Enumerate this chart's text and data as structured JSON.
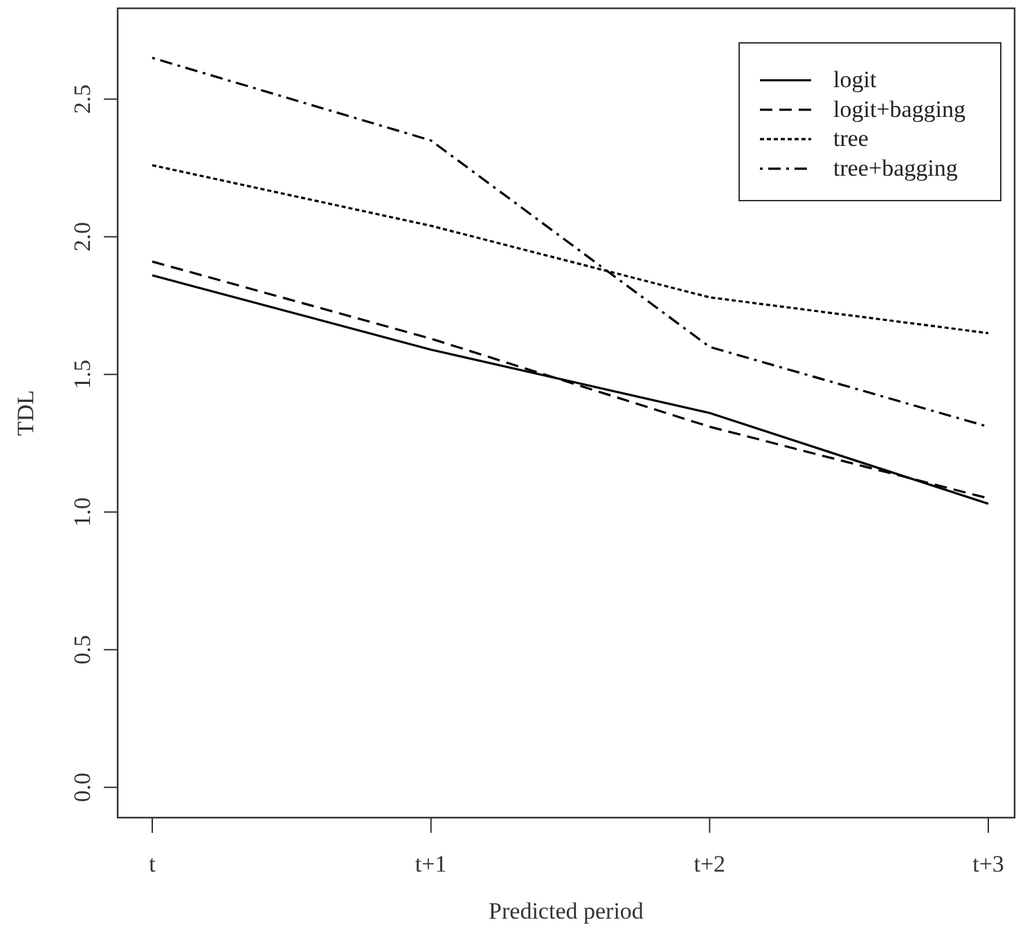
{
  "chart_data": {
    "type": "line",
    "xlabel": "Predicted period",
    "ylabel": "TDL",
    "categories": [
      "t",
      "t+1",
      "t+2",
      "t+3"
    ],
    "ylim": [
      -0.11,
      2.83
    ],
    "yticks": [
      {
        "value": 0,
        "label": "0.0"
      },
      {
        "value": 0.5,
        "label": "0.5"
      },
      {
        "value": 1,
        "label": "1.0"
      },
      {
        "value": 1.5,
        "label": "1.5"
      },
      {
        "value": 2,
        "label": "2.0"
      },
      {
        "value": 2.5,
        "label": "2.5"
      }
    ],
    "legend": "top right",
    "grid": false,
    "series": [
      {
        "name": "logit",
        "color": "#000000",
        "line_style": "solid",
        "values": [
          1.86,
          1.59,
          1.36,
          1.03
        ]
      },
      {
        "name": "logit+bagging",
        "color": "#000000",
        "line_style": "dashed",
        "values": [
          1.91,
          1.63,
          1.31,
          1.05
        ]
      },
      {
        "name": "tree",
        "color": "#000000",
        "line_style": "dotted",
        "values": [
          2.26,
          2.04,
          1.78,
          1.65
        ]
      },
      {
        "name": "tree+bagging",
        "color": "#000000",
        "line_style": "dashdot",
        "values": [
          2.65,
          2.35,
          1.6,
          1.31
        ]
      }
    ]
  }
}
